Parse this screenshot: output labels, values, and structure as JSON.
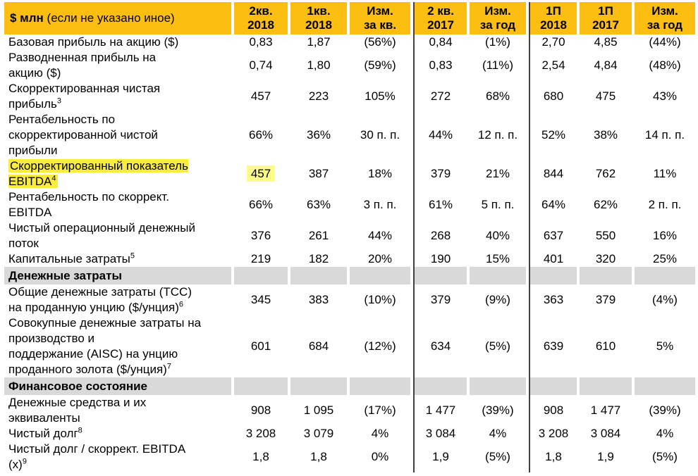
{
  "colors": {
    "header_bg": "#FCBE10",
    "section_bg": "#D9D9D9",
    "label_highlight": "#F9EC3E",
    "value_highlight": "#FCFC8A",
    "divider": "#404040"
  },
  "table": {
    "header": {
      "label_bold": "$ млн",
      "label_rest": " (если не указано иное)",
      "cols": [
        {
          "l1": "2кв.",
          "l2": "2018"
        },
        {
          "l1": "1кв.",
          "l2": "2018"
        },
        {
          "l1": "Изм.",
          "l2": "за кв."
        },
        {
          "l1": "2 кв.",
          "l2": "2017"
        },
        {
          "l1": "Изм.",
          "l2": "за год"
        },
        {
          "l1": "1П",
          "l2": "2018"
        },
        {
          "l1": "1П",
          "l2": "2017"
        },
        {
          "l1": "Изм.",
          "l2": "за год"
        }
      ]
    },
    "rows": [
      {
        "type": "data",
        "label": "Базовая прибыль на акцию ($)",
        "values": [
          "0,83",
          "1,87",
          "(56%)",
          "0,84",
          "(1%)",
          "2,70",
          "4,85",
          "(44%)"
        ]
      },
      {
        "type": "data",
        "label": "Разводненная прибыль на\nакцию ($)",
        "values": [
          "0,74",
          "1,80",
          "(59%)",
          "0,83",
          "(11%)",
          "2,54",
          "4,84",
          "(48%)"
        ]
      },
      {
        "type": "data",
        "label": "Скорректированная чистая\nприбыль",
        "sup": "3",
        "values": [
          "457",
          "223",
          "105%",
          "272",
          "68%",
          "680",
          "475",
          "43%"
        ]
      },
      {
        "type": "data",
        "label": "Рентабельность по\nскорректированной чистой\nприбыли",
        "values": [
          "66%",
          "36%",
          "30 п. п.",
          "44%",
          "12 п. п.",
          "52%",
          "38%",
          "14 п. п."
        ]
      },
      {
        "type": "data",
        "label": "Скорректированный показатель\nEBITDA",
        "sup": "4",
        "highlight_label": true,
        "highlight_value_index": 0,
        "values": [
          "457",
          "387",
          "18%",
          "379",
          "21%",
          "844",
          "762",
          "11%"
        ]
      },
      {
        "type": "data",
        "label": "Рентабельность по скоррект.\nEBITDA",
        "values": [
          "66%",
          "63%",
          "3 п. п.",
          "61%",
          "5 п. п.",
          "64%",
          "62%",
          "2 п. п."
        ]
      },
      {
        "type": "data",
        "label": "Чистый операционный денежный\nпоток",
        "values": [
          "376",
          "261",
          "44%",
          "268",
          "40%",
          "637",
          "550",
          "16%"
        ]
      },
      {
        "type": "data",
        "label": "Капитальные затраты",
        "sup": "5",
        "values": [
          "219",
          "182",
          "20%",
          "190",
          "15%",
          "401",
          "320",
          "25%"
        ]
      },
      {
        "type": "section",
        "label": "Денежные затраты"
      },
      {
        "type": "data",
        "label": "Общие денежные затраты (TCC)\nна проданную унцию ($/унция)",
        "sup": "6",
        "values": [
          "345",
          "383",
          "(10%)",
          "379",
          "(9%)",
          "363",
          "379",
          "(4%)"
        ]
      },
      {
        "type": "data",
        "label": "Совокупные денежные затраты на\nпроизводство и\nподдержание (AISC) на унцию\nпроданного золота ($/унция)",
        "sup": "7",
        "values": [
          "601",
          "684",
          "(12%)",
          "634",
          "(5%)",
          "639",
          "610",
          "5%"
        ]
      },
      {
        "type": "section",
        "label": "Финансовое состояние"
      },
      {
        "type": "data",
        "label": "Денежные средства и их\nэквиваленты",
        "values": [
          "908",
          "1 095",
          "(17%)",
          "1 477",
          "(39%)",
          "908",
          "1 477",
          "(39%)"
        ]
      },
      {
        "type": "data",
        "label": "Чистый долг",
        "sup": "8",
        "values": [
          "3 208",
          "3 079",
          "4%",
          "3 084",
          "4%",
          "3 208",
          "3 084",
          "4%"
        ]
      },
      {
        "type": "data",
        "label": "Чистый долг / скоррект. EBITDA\n(x)",
        "sup": "9",
        "values": [
          "1,8",
          "1,8",
          "0%",
          "1,9",
          "(5%)",
          "1,8",
          "1,9",
          "(5%)"
        ]
      }
    ]
  }
}
